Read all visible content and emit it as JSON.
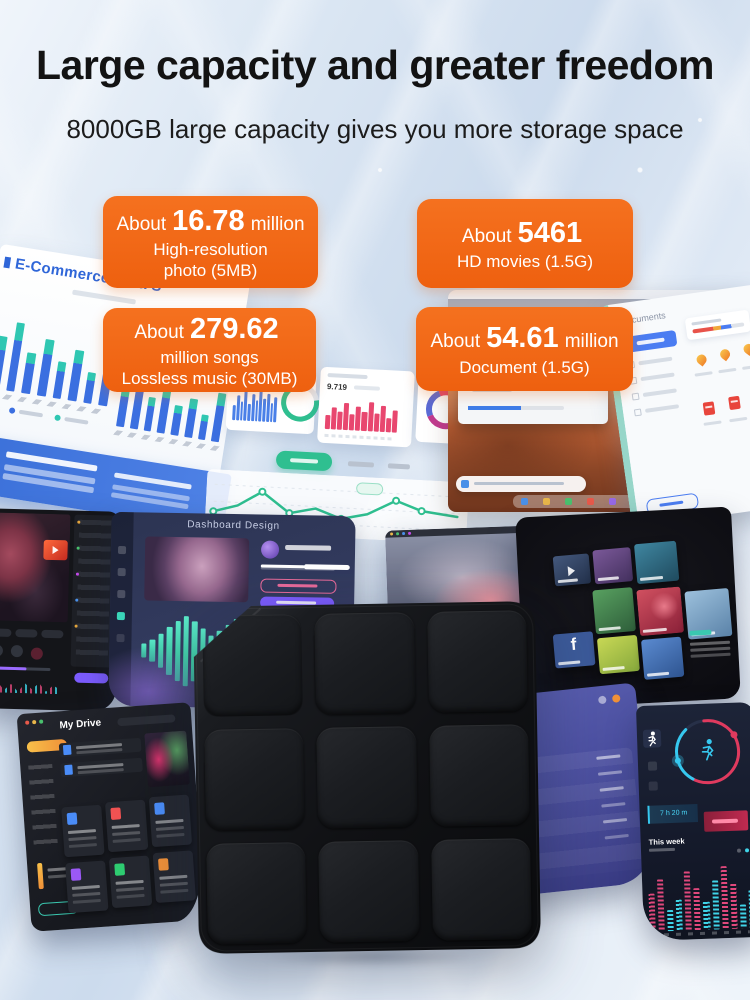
{
  "page": {
    "title": "Large capacity and greater freedom",
    "subtitle": "8000GB large capacity gives you more storage space"
  },
  "badges": [
    {
      "prefix": "About",
      "value": "16.78",
      "suffix": "million",
      "line2": "High-resolution",
      "line3": "photo (5MB)"
    },
    {
      "prefix": "About",
      "value": "5461",
      "suffix": "",
      "line2": "HD movies (1.5G)",
      "line3": ""
    },
    {
      "prefix": "About",
      "value": "279.62",
      "suffix": "",
      "line2": "million songs",
      "line3": "Lossless music (30MB)"
    },
    {
      "prefix": "About",
      "value": "54.61",
      "suffix": "million",
      "line2": "Document (1.5G)",
      "line3": ""
    }
  ],
  "collage": {
    "ecommerce_title": "E-Commerce Data S",
    "stat_value": "9.719",
    "documents_title": "Documents",
    "music_dashboard_title": "Dashboard Design",
    "drive_title": "My Drive",
    "fitness_time": "7 h 20 m",
    "fitness_week_label": "This week"
  },
  "icons": {
    "facebook_glyph": "f"
  },
  "colors": {
    "accent_orange": "#f0661c",
    "title_text": "#141414",
    "device_black": "#121316",
    "dashboard_blue": "#3b6fe0",
    "teal": "#2fc7b2",
    "green": "#2fbf90",
    "purple_panel": "#4b4fa0",
    "red_accent": "#e03a5e",
    "cyan_accent": "#36c8ef"
  }
}
